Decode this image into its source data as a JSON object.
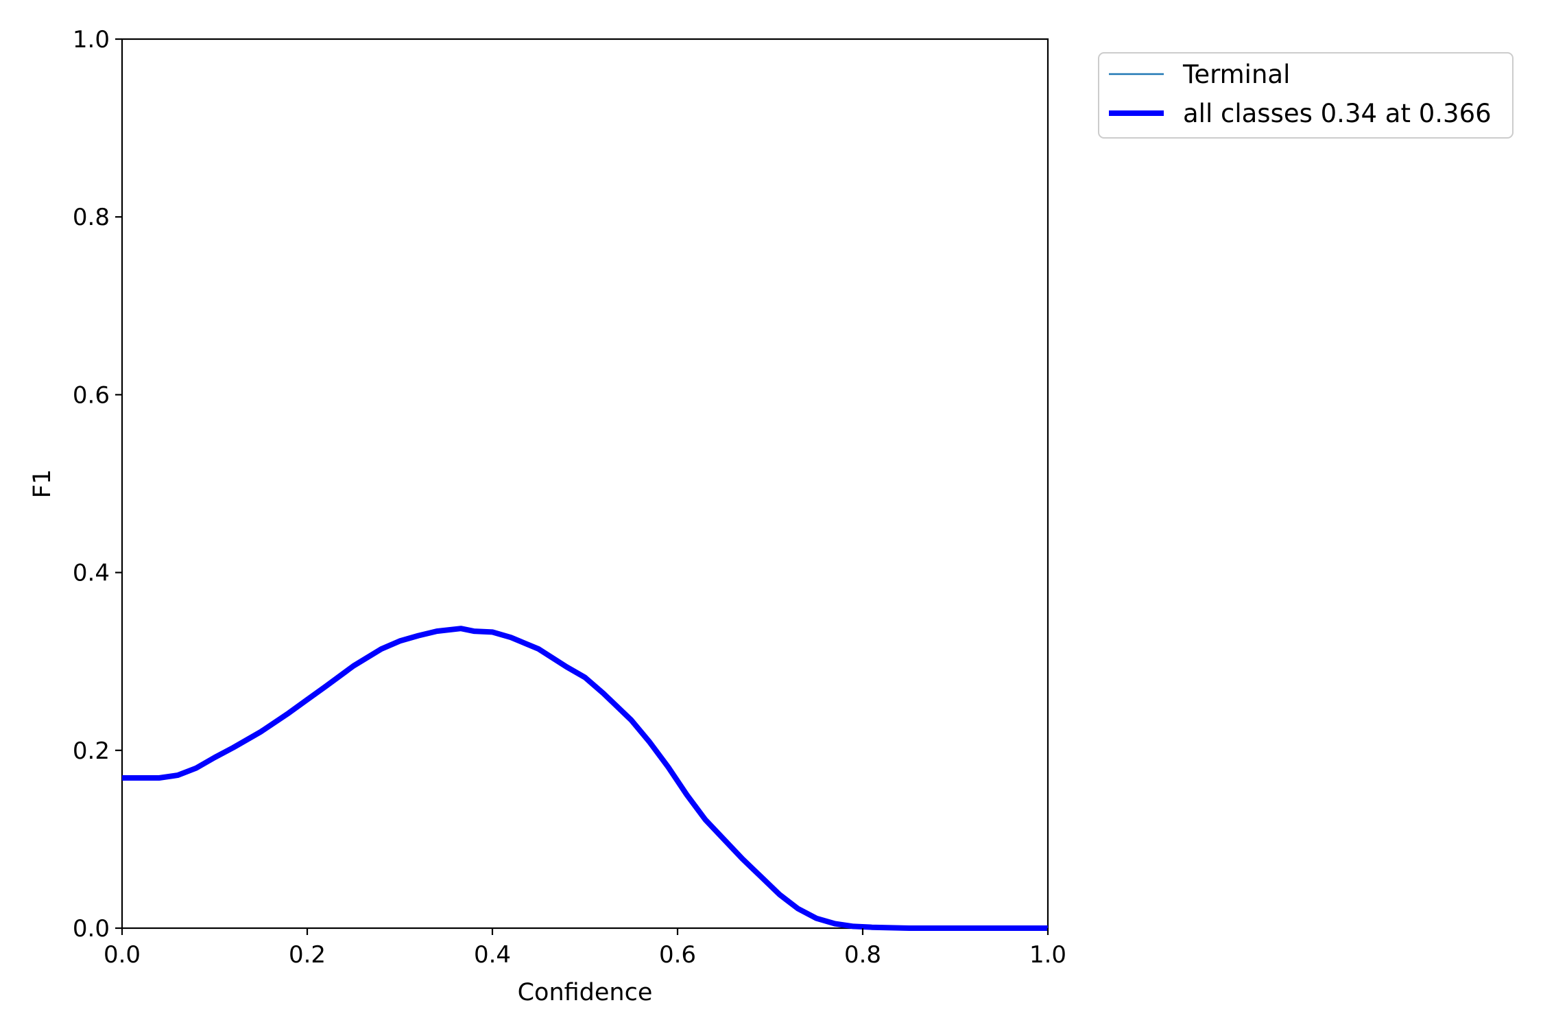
{
  "chart_data": {
    "type": "line",
    "title": "",
    "xlabel": "Confidence",
    "ylabel": "F1",
    "xlim": [
      0.0,
      1.0
    ],
    "ylim": [
      0.0,
      1.0
    ],
    "x_ticks": [
      "0.0",
      "0.2",
      "0.4",
      "0.6",
      "0.8",
      "1.0"
    ],
    "y_ticks": [
      "0.0",
      "0.2",
      "0.4",
      "0.6",
      "0.8",
      "1.0"
    ],
    "grid": false,
    "legend_position": "outside-top-right",
    "series": [
      {
        "name": "Terminal",
        "color": "#1f77b4",
        "line": "thin",
        "x": [
          0.0,
          0.04,
          0.06,
          0.08,
          0.1,
          0.12,
          0.15,
          0.18,
          0.2,
          0.22,
          0.25,
          0.28,
          0.3,
          0.32,
          0.34,
          0.366,
          0.38,
          0.4,
          0.42,
          0.45,
          0.48,
          0.5,
          0.52,
          0.55,
          0.57,
          0.59,
          0.61,
          0.63,
          0.65,
          0.67,
          0.69,
          0.71,
          0.73,
          0.75,
          0.77,
          0.79,
          0.81,
          0.85,
          0.9,
          1.0
        ],
        "y": [
          0.169,
          0.169,
          0.172,
          0.18,
          0.192,
          0.203,
          0.221,
          0.242,
          0.257,
          0.272,
          0.295,
          0.314,
          0.323,
          0.329,
          0.334,
          0.337,
          0.334,
          0.333,
          0.327,
          0.314,
          0.294,
          0.282,
          0.264,
          0.234,
          0.209,
          0.181,
          0.15,
          0.122,
          0.1,
          0.078,
          0.058,
          0.038,
          0.022,
          0.011,
          0.005,
          0.002,
          0.001,
          0.0,
          0.0,
          0.0
        ]
      },
      {
        "name": "all classes 0.34 at 0.366",
        "color": "#0000ff",
        "line": "thick",
        "x": [
          0.0,
          0.04,
          0.06,
          0.08,
          0.1,
          0.12,
          0.15,
          0.18,
          0.2,
          0.22,
          0.25,
          0.28,
          0.3,
          0.32,
          0.34,
          0.366,
          0.38,
          0.4,
          0.42,
          0.45,
          0.48,
          0.5,
          0.52,
          0.55,
          0.57,
          0.59,
          0.61,
          0.63,
          0.65,
          0.67,
          0.69,
          0.71,
          0.73,
          0.75,
          0.77,
          0.79,
          0.81,
          0.85,
          0.9,
          1.0
        ],
        "y": [
          0.169,
          0.169,
          0.172,
          0.18,
          0.192,
          0.203,
          0.221,
          0.242,
          0.257,
          0.272,
          0.295,
          0.314,
          0.323,
          0.329,
          0.334,
          0.337,
          0.334,
          0.333,
          0.327,
          0.314,
          0.294,
          0.282,
          0.264,
          0.234,
          0.209,
          0.181,
          0.15,
          0.122,
          0.1,
          0.078,
          0.058,
          0.038,
          0.022,
          0.011,
          0.005,
          0.002,
          0.001,
          0.0,
          0.0,
          0.0
        ]
      }
    ]
  }
}
